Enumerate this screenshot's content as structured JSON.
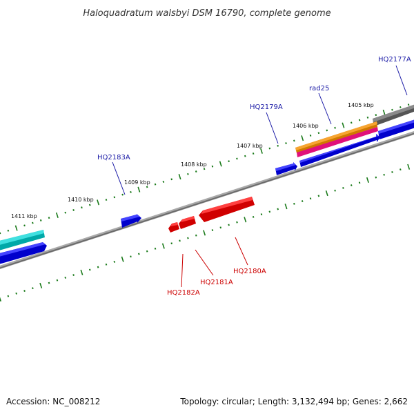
{
  "title": "Haloquadratum walsbyi DSM 16790, complete genome",
  "accession_text": "Accession: NC_008212",
  "summary_text": "Topology: circular; Length: 3,132,494 bp; Genes: 2,662",
  "kbp_labels": [
    "1405 kbp",
    "1406 kbp",
    "1407 kbp",
    "1408 kbp",
    "1409 kbp",
    "1410 kbp",
    "1411 kbp"
  ],
  "gene_labels": {
    "hq2177a": "HQ2177A",
    "rad25": "rad25",
    "hq2179a": "HQ2179A",
    "hq2183a": "HQ2183A",
    "hq2180a": "HQ2180A",
    "hq2181a": "HQ2181A",
    "hq2182a": "HQ2182A"
  },
  "colors": {
    "forward_gene": "#0000ee",
    "reverse_gene": "#ee0000",
    "forward_label": "#1a1aa6",
    "reverse_label": "#cc0000",
    "backbone": "#888888",
    "tick": "#1a7a1a",
    "orange_feature": "#f0900a",
    "magenta_feature": "#ff1493",
    "cyan_feature": "#00c8c8",
    "gray_feature": "#6e6e6e"
  }
}
